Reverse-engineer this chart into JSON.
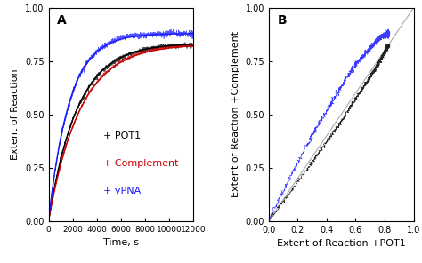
{
  "panel_A": {
    "label": "A",
    "xlabel": "Time, s",
    "ylabel": "Extent of Reaction",
    "xlim": [
      0,
      12000
    ],
    "ylim": [
      0.0,
      1.0
    ],
    "xticks": [
      0,
      2000,
      4000,
      6000,
      8000,
      10000,
      12000
    ],
    "yticks": [
      0.0,
      0.25,
      0.5,
      0.75,
      1.0
    ],
    "curves": {
      "POT1": {
        "color": "#000000",
        "label": "+ POT1",
        "A": 0.835,
        "k": 0.00042,
        "noise": 0.01
      },
      "Complement": {
        "color": "#cc0000",
        "label": "+ Complement",
        "A": 0.83,
        "k": 0.00038,
        "noise": 0.007
      },
      "gammaPNA": {
        "color": "#1a1aff",
        "label": "+ γPNA",
        "A": 0.88,
        "k": 0.00058,
        "noise": 0.013
      }
    }
  },
  "panel_B": {
    "label": "B",
    "xlabel": "Extent of Reaction +POT1",
    "ylabel": "Extent of Reaction +Complement",
    "xlim": [
      0.0,
      1.0
    ],
    "ylim": [
      0.0,
      1.0
    ],
    "xticks": [
      0.0,
      0.2,
      0.4,
      0.6,
      0.8,
      1.0
    ],
    "yticks": [
      0.0,
      0.25,
      0.5,
      0.75,
      1.0
    ],
    "diagonal_color": "#aaaaaa"
  },
  "background_color": "#ffffff",
  "tick_fontsize": 7,
  "label_fontsize": 8,
  "legend_fontsize": 8,
  "panel_label_fontsize": 10
}
